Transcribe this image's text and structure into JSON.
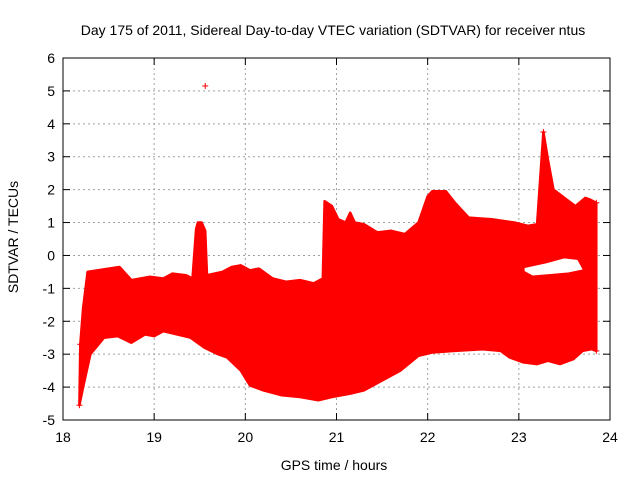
{
  "chart_data": {
    "type": "area",
    "title": "Day 175 of 2011, Sidereal Day-to-day VTEC variation (SDTVAR) for receiver ntus",
    "xlabel": "GPS time / hours",
    "ylabel": "SDTVAR / TECUs",
    "xlim": [
      18,
      24
    ],
    "ylim": [
      -5,
      6
    ],
    "xticks": [
      18,
      19,
      20,
      21,
      22,
      23,
      24
    ],
    "yticks": [
      -5,
      -4,
      -3,
      -2,
      -1,
      0,
      1,
      2,
      3,
      4,
      5,
      6
    ],
    "grid": true,
    "legend": "none",
    "color": "#ff0000",
    "marker": "+",
    "upper_envelope": [
      [
        18.19,
        -2.7
      ],
      [
        18.22,
        -1.6
      ],
      [
        18.27,
        -0.5
      ],
      [
        18.5,
        -0.4
      ],
      [
        18.62,
        -0.35
      ],
      [
        18.75,
        -0.75
      ],
      [
        18.95,
        -0.65
      ],
      [
        19.1,
        -0.7
      ],
      [
        19.2,
        -0.55
      ],
      [
        19.35,
        -0.6
      ],
      [
        19.42,
        -0.7
      ],
      [
        19.46,
        0.8
      ],
      [
        19.48,
        1.0
      ],
      [
        19.52,
        1.0
      ],
      [
        19.56,
        0.75
      ],
      [
        19.58,
        -0.6
      ],
      [
        19.75,
        -0.5
      ],
      [
        19.85,
        -0.35
      ],
      [
        19.95,
        -0.3
      ],
      [
        20.05,
        -0.45
      ],
      [
        20.15,
        -0.4
      ],
      [
        20.3,
        -0.7
      ],
      [
        20.45,
        -0.8
      ],
      [
        20.6,
        -0.75
      ],
      [
        20.75,
        -0.85
      ],
      [
        20.85,
        -0.7
      ],
      [
        20.87,
        1.65
      ],
      [
        20.95,
        1.5
      ],
      [
        21.02,
        1.1
      ],
      [
        21.1,
        1.0
      ],
      [
        21.15,
        1.3
      ],
      [
        21.2,
        1.0
      ],
      [
        21.3,
        0.95
      ],
      [
        21.45,
        0.7
      ],
      [
        21.6,
        0.75
      ],
      [
        21.75,
        0.65
      ],
      [
        21.9,
        1.0
      ],
      [
        22.0,
        1.8
      ],
      [
        22.05,
        1.95
      ],
      [
        22.2,
        1.95
      ],
      [
        22.3,
        1.6
      ],
      [
        22.45,
        1.15
      ],
      [
        22.7,
        1.1
      ],
      [
        22.95,
        1.0
      ],
      [
        23.1,
        0.9
      ],
      [
        23.2,
        0.95
      ],
      [
        23.27,
        3.75
      ],
      [
        23.32,
        2.9
      ],
      [
        23.38,
        2.0
      ],
      [
        23.5,
        1.75
      ],
      [
        23.62,
        1.5
      ],
      [
        23.73,
        1.75
      ],
      [
        23.78,
        1.7
      ],
      [
        23.85,
        1.6
      ]
    ],
    "lower_envelope": [
      [
        18.18,
        -4.55
      ],
      [
        18.22,
        -4.0
      ],
      [
        18.3,
        -3.0
      ],
      [
        18.45,
        -2.5
      ],
      [
        18.6,
        -2.45
      ],
      [
        18.75,
        -2.65
      ],
      [
        18.9,
        -2.4
      ],
      [
        19.0,
        -2.45
      ],
      [
        19.1,
        -2.3
      ],
      [
        19.25,
        -2.4
      ],
      [
        19.4,
        -2.5
      ],
      [
        19.55,
        -2.8
      ],
      [
        19.7,
        -3.0
      ],
      [
        19.8,
        -3.1
      ],
      [
        19.95,
        -3.5
      ],
      [
        20.05,
        -3.95
      ],
      [
        20.2,
        -4.1
      ],
      [
        20.4,
        -4.25
      ],
      [
        20.6,
        -4.3
      ],
      [
        20.8,
        -4.4
      ],
      [
        20.95,
        -4.3
      ],
      [
        21.15,
        -4.2
      ],
      [
        21.3,
        -4.1
      ],
      [
        21.5,
        -3.8
      ],
      [
        21.7,
        -3.5
      ],
      [
        21.9,
        -3.05
      ],
      [
        22.05,
        -2.95
      ],
      [
        22.3,
        -2.9
      ],
      [
        22.6,
        -2.85
      ],
      [
        22.8,
        -2.9
      ],
      [
        22.9,
        -3.1
      ],
      [
        23.05,
        -3.25
      ],
      [
        23.2,
        -3.3
      ],
      [
        23.32,
        -3.2
      ],
      [
        23.45,
        -3.3
      ],
      [
        23.6,
        -3.15
      ],
      [
        23.7,
        -2.9
      ],
      [
        23.8,
        -2.85
      ],
      [
        23.85,
        -2.9
      ]
    ],
    "hole": [
      [
        23.05,
        -0.35
      ],
      [
        23.3,
        -0.2
      ],
      [
        23.5,
        -0.05
      ],
      [
        23.65,
        -0.1
      ],
      [
        23.72,
        -0.45
      ],
      [
        23.55,
        -0.55
      ],
      [
        23.35,
        -0.6
      ],
      [
        23.15,
        -0.65
      ],
      [
        23.05,
        -0.5
      ]
    ],
    "outliers": [
      [
        19.56,
        5.15
      ]
    ]
  }
}
